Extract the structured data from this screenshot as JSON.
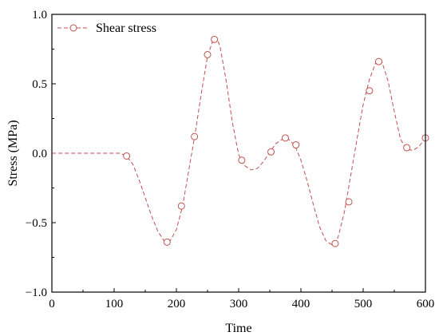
{
  "chart_data": {
    "type": "line",
    "title": "",
    "xlabel": "Time",
    "ylabel": "Stress (MPa)",
    "xlim": [
      0,
      600
    ],
    "ylim": [
      -1.0,
      1.0
    ],
    "xticks": [
      0,
      100,
      200,
      300,
      400,
      500,
      600
    ],
    "xtick_labels": [
      "0",
      "100",
      "200",
      "300",
      "400",
      "500",
      "600"
    ],
    "yticks": [
      -1.0,
      -0.5,
      0.0,
      0.5,
      1.0
    ],
    "ytick_labels": [
      "−1.0",
      "−0.5",
      "0.0",
      "0.5",
      "1.0"
    ],
    "grid": false,
    "legend_position": "top-left",
    "colors": {
      "series": "#c0504d"
    },
    "series": [
      {
        "name": "Shear stress",
        "line_style": "dashed",
        "curve_x": [
          0,
          30,
          60,
          90,
          110,
          120,
          130,
          140,
          150,
          160,
          170,
          180,
          190,
          200,
          210,
          220,
          230,
          240,
          250,
          260,
          265,
          270,
          280,
          290,
          300,
          310,
          320,
          330,
          340,
          350,
          360,
          370,
          375,
          380,
          390,
          400,
          410,
          420,
          430,
          440,
          450,
          455,
          460,
          470,
          480,
          490,
          500,
          510,
          520,
          525,
          530,
          540,
          550,
          560,
          570,
          580,
          590,
          600
        ],
        "curve_y": [
          0,
          0,
          0,
          0,
          0,
          -0.02,
          -0.08,
          -0.19,
          -0.32,
          -0.45,
          -0.56,
          -0.63,
          -0.63,
          -0.55,
          -0.38,
          -0.12,
          0.14,
          0.43,
          0.7,
          0.83,
          0.83,
          0.77,
          0.52,
          0.22,
          -0.01,
          -0.09,
          -0.12,
          -0.11,
          -0.06,
          0.01,
          0.07,
          0.1,
          0.11,
          0.1,
          0.06,
          -0.05,
          -0.2,
          -0.37,
          -0.53,
          -0.63,
          -0.66,
          -0.65,
          -0.6,
          -0.42,
          -0.16,
          0.1,
          0.35,
          0.53,
          0.65,
          0.67,
          0.66,
          0.52,
          0.3,
          0.1,
          0.03,
          0.02,
          0.05,
          0.11
        ],
        "markers": [
          {
            "x": 120,
            "y": -0.02
          },
          {
            "x": 185,
            "y": -0.64
          },
          {
            "x": 208,
            "y": -0.38
          },
          {
            "x": 229,
            "y": 0.12
          },
          {
            "x": 250,
            "y": 0.71
          },
          {
            "x": 261,
            "y": 0.82
          },
          {
            "x": 305,
            "y": -0.05
          },
          {
            "x": 352,
            "y": 0.01
          },
          {
            "x": 375,
            "y": 0.11
          },
          {
            "x": 392,
            "y": 0.06
          },
          {
            "x": 455,
            "y": -0.65
          },
          {
            "x": 477,
            "y": -0.35
          },
          {
            "x": 510,
            "y": 0.45
          },
          {
            "x": 525,
            "y": 0.66
          },
          {
            "x": 570,
            "y": 0.04
          },
          {
            "x": 600,
            "y": 0.11
          }
        ]
      }
    ]
  }
}
